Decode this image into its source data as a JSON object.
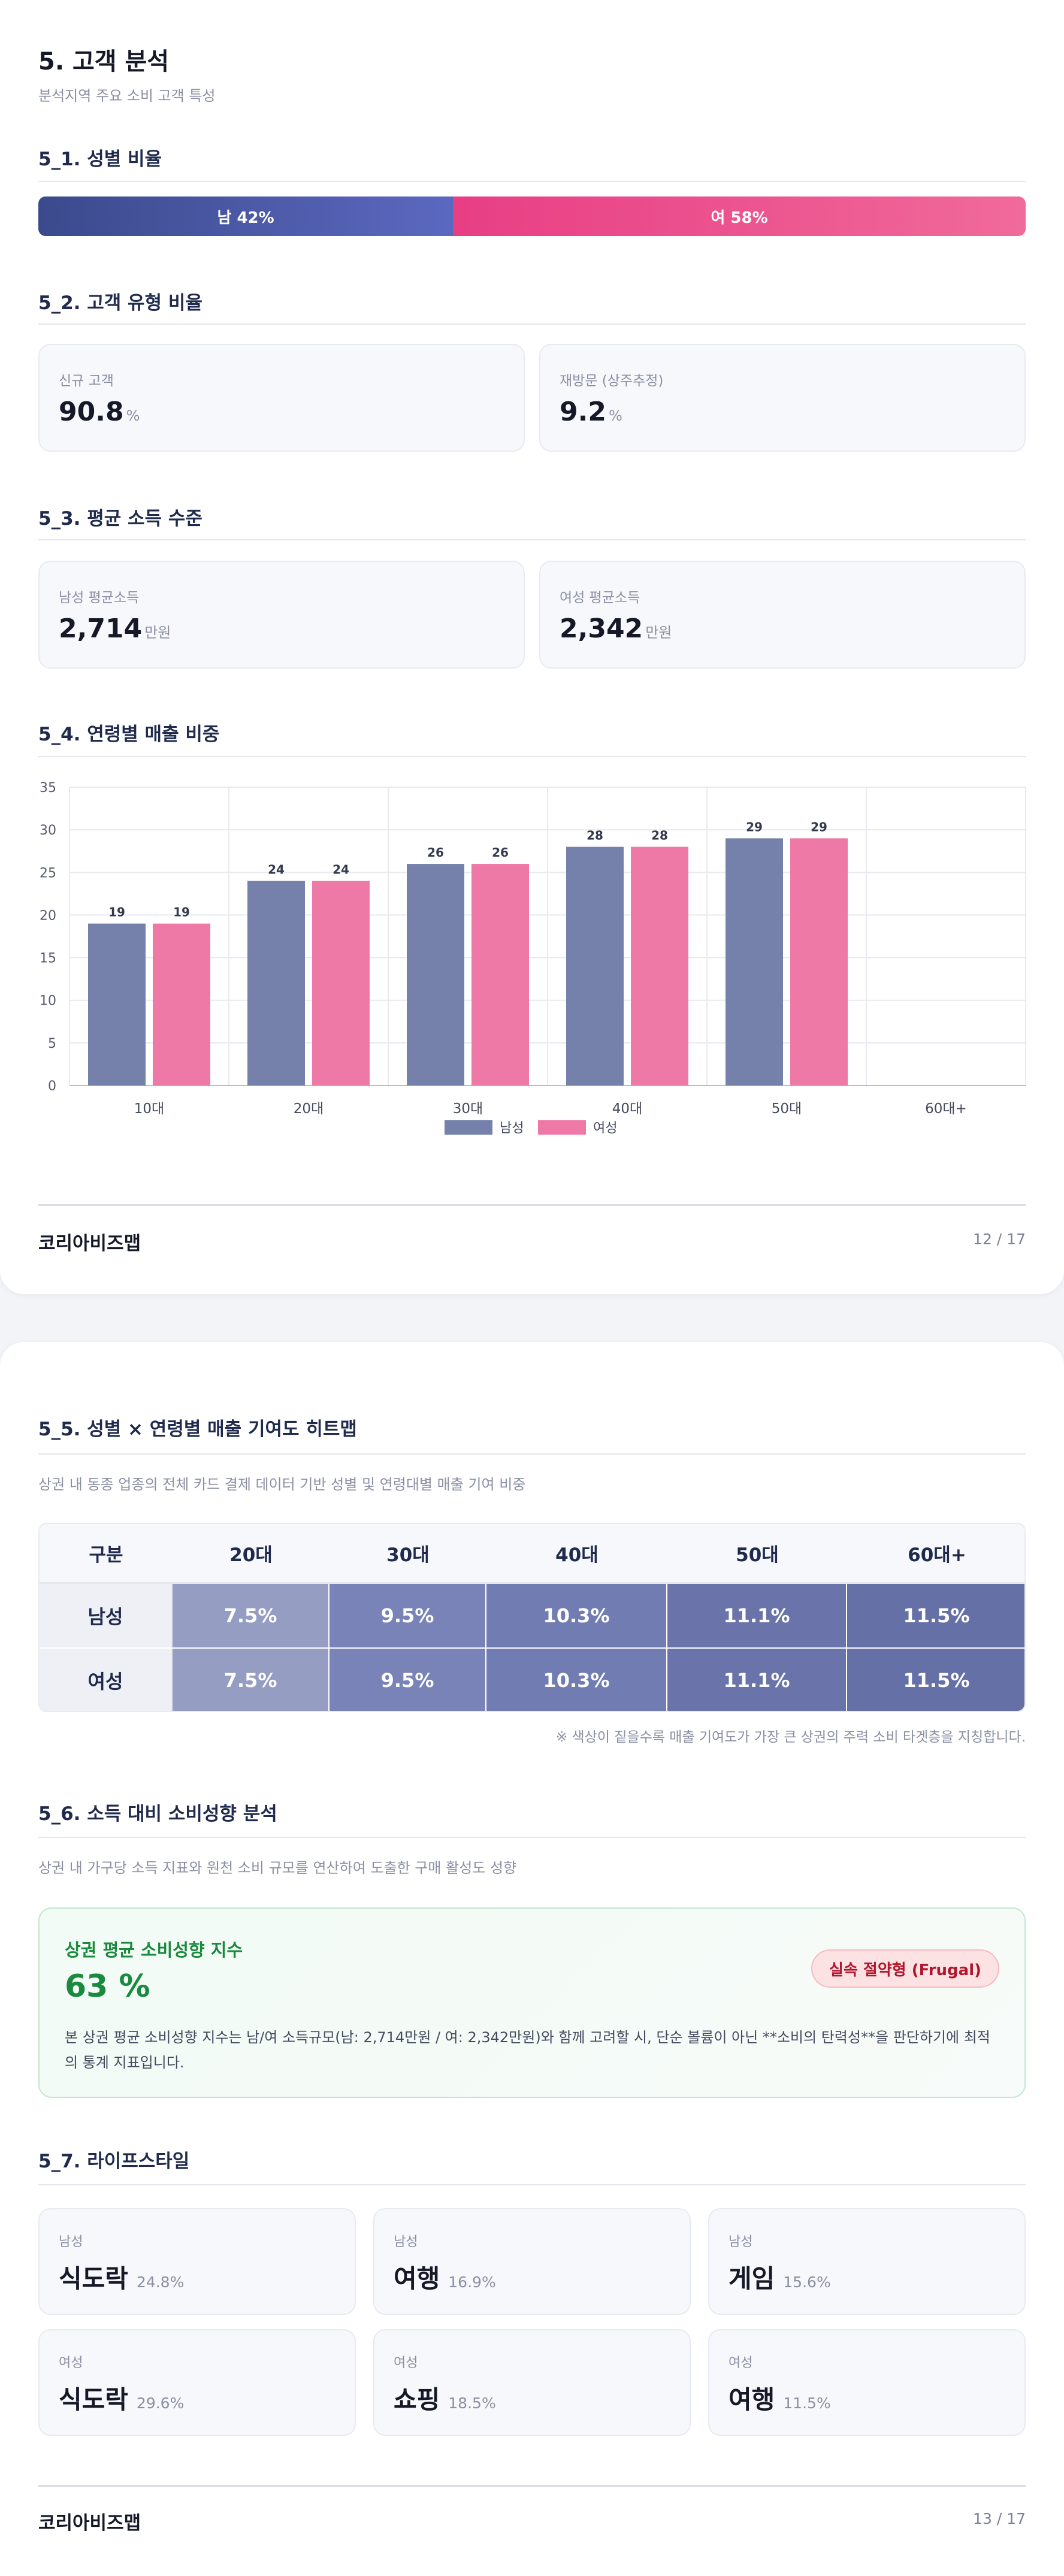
{
  "page1": {
    "title": "5. 고객 분석",
    "subtitle": "분석지역 주요 소비 고객 특성",
    "s51": {
      "heading": "5_1. 성별 비율",
      "male_label": "남 42%",
      "female_label": "여 58%",
      "male_share": 42,
      "female_share": 58
    },
    "s52": {
      "heading": "5_2. 고객 유형 비율",
      "cards": [
        {
          "label": "신규 고객",
          "value": "90.8",
          "unit": "%"
        },
        {
          "label": "재방문 (상주추정)",
          "value": "9.2",
          "unit": "%"
        }
      ]
    },
    "s53": {
      "heading": "5_3. 평균 소득 수준",
      "cards": [
        {
          "label": "남성 평균소득",
          "value": "2,714",
          "unit": "만원"
        },
        {
          "label": "여성 평균소득",
          "value": "2,342",
          "unit": "만원"
        }
      ]
    },
    "s54": {
      "heading": "5_4. 연령별 매출 비중"
    },
    "footer": {
      "brand": "코리아비즈맵",
      "page": "12 / 17"
    }
  },
  "chart_data": {
    "type": "bar",
    "categories": [
      "10대",
      "20대",
      "30대",
      "40대",
      "50대",
      "60대+"
    ],
    "series": [
      {
        "name": "남성",
        "values": [
          19,
          24,
          26,
          28,
          29,
          null
        ],
        "color": "#7580ab"
      },
      {
        "name": "여성",
        "values": [
          19,
          24,
          26,
          28,
          29,
          null
        ],
        "color": "#ee78a6"
      }
    ],
    "ylim": [
      0,
      35
    ],
    "yticks": [
      0,
      5,
      10,
      15,
      20,
      25,
      30,
      35
    ],
    "grid": true,
    "legend": "bottom-center"
  },
  "page2": {
    "s55": {
      "heading": "5_5. 성별 × 연령별 매출 기여도 히트맵",
      "desc": "상권 내 동종 업종의 전체 카드 결제 데이터 기반 성별 및 연령대별 매출 기여 비중",
      "header": [
        "구분",
        "20대",
        "30대",
        "40대",
        "50대",
        "60대+"
      ],
      "rows": [
        {
          "label": "남성",
          "cells": [
            "7.5%",
            "9.5%",
            "10.3%",
            "11.1%",
            "11.5%"
          ]
        },
        {
          "label": "여성",
          "cells": [
            "7.5%",
            "9.5%",
            "10.3%",
            "11.1%",
            "11.5%"
          ]
        }
      ],
      "colors": [
        "#969dc3",
        "#7a83b7",
        "#717cb2",
        "#6a74ab",
        "#6570a7"
      ],
      "note": "※ 색상이 짙을수록 매출 기여도가 가장 큰 상권의 주력 소비 타겟층을 지칭합니다."
    },
    "s56": {
      "heading": "5_6. 소득 대비 소비성향 분석",
      "desc": "상권 내 가구당 소득 지표와 원천 소비 규모를 연산하여 도출한 구매 활성도 성향",
      "card_title": "상권 평균 소비성향 지수",
      "card_value": "63 %",
      "badge": "실속 절약형 (Frugal)",
      "body": "본 상권 평균 소비성향 지수는 남/여 소득규모(남: 2,714만원 / 여: 2,342만원)와 함께 고려할 시, 단순 볼륨이 아닌 **소비의 탄력성**을 판단하기에 최적의 통계 지표입니다."
    },
    "s57": {
      "heading": "5_7. 라이프스타일",
      "items": [
        {
          "gender": "남성",
          "name": "식도락",
          "pct": "24.8%"
        },
        {
          "gender": "남성",
          "name": "여행",
          "pct": "16.9%"
        },
        {
          "gender": "남성",
          "name": "게임",
          "pct": "15.6%"
        },
        {
          "gender": "여성",
          "name": "식도락",
          "pct": "29.6%"
        },
        {
          "gender": "여성",
          "name": "쇼핑",
          "pct": "18.5%"
        },
        {
          "gender": "여성",
          "name": "여행",
          "pct": "11.5%"
        }
      ]
    },
    "footer": {
      "brand": "코리아비즈맵",
      "page": "13 / 17"
    }
  }
}
